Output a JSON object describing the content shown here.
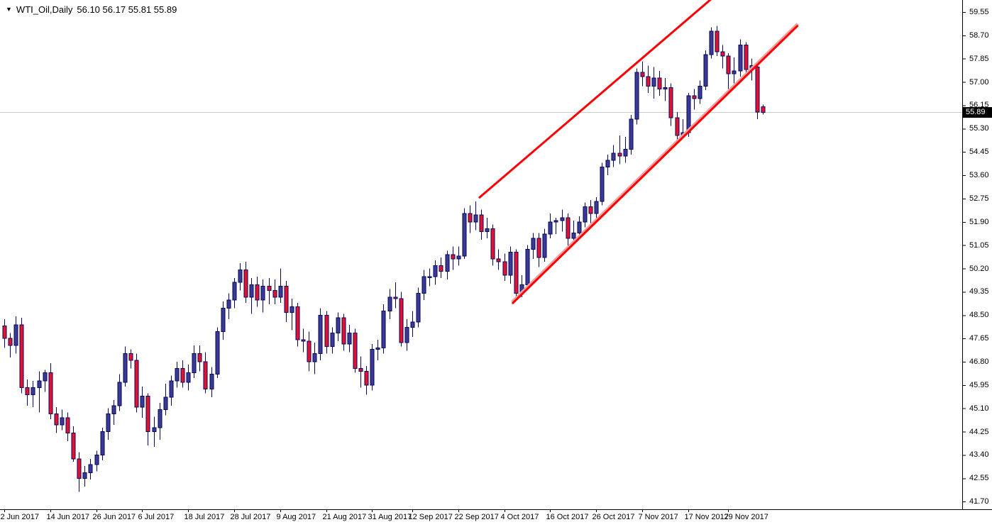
{
  "header": {
    "dropdown_icon": "▼",
    "symbol_label": "WTI_Oil,Daily",
    "ohlc_values": "56.10 56.17 55.81 55.89"
  },
  "chart_data": {
    "type": "candlestick",
    "title": "WTI_Oil,Daily",
    "symbol": "WTI_Oil",
    "timeframe": "Daily",
    "current_bar": {
      "open": 56.1,
      "high": 56.17,
      "low": 55.81,
      "close": 55.89
    },
    "current_price": "55.89",
    "current_price_line": 55.89,
    "xlim": [
      -0.74,
      166.7
    ],
    "ylim": [
      41.42,
      59.99
    ],
    "grid": "horizontal-line-at-current-price-only",
    "y_axis_labels": [
      "59.55",
      "58.70",
      "57.85",
      "57.00",
      "56.15",
      "55.30",
      "54.45",
      "53.60",
      "52.75",
      "51.90",
      "51.05",
      "50.20",
      "49.35",
      "48.50",
      "47.65",
      "46.80",
      "45.95",
      "45.10",
      "44.25",
      "43.40",
      "42.55",
      "41.70"
    ],
    "x_axis_labels": [
      {
        "text": "2 Jun 2017",
        "index": 0
      },
      {
        "text": "14 Jun 2017",
        "index": 8
      },
      {
        "text": "26 Jun 2017",
        "index": 16
      },
      {
        "text": "6 Jul 2017",
        "index": 24
      },
      {
        "text": "18 Jul 2017",
        "index": 32
      },
      {
        "text": "28 Jul 2017",
        "index": 40
      },
      {
        "text": "9 Aug 2017",
        "index": 48
      },
      {
        "text": "21 Aug 2017",
        "index": 56
      },
      {
        "text": "31 Aug 2017",
        "index": 64
      },
      {
        "text": "12 Sep 2017",
        "index": 71
      },
      {
        "text": "22 Sep 2017",
        "index": 79
      },
      {
        "text": "4 Oct 2017",
        "index": 87
      },
      {
        "text": "16 Oct 2017",
        "index": 95
      },
      {
        "text": "26 Oct 2017",
        "index": 103
      },
      {
        "text": "7 Nov 2017",
        "index": 111
      },
      {
        "text": "17 Nov 2017",
        "index": 119
      },
      {
        "text": "29 Nov 2017",
        "index": 126
      }
    ],
    "candles": [
      [
        48.1,
        48.35,
        47.3,
        47.65
      ],
      [
        47.65,
        47.85,
        46.95,
        47.4
      ],
      [
        47.4,
        48.45,
        47.1,
        48.15
      ],
      [
        48.15,
        48.4,
        45.65,
        45.85
      ],
      [
        45.85,
        46.15,
        45.2,
        45.6
      ],
      [
        45.6,
        46.1,
        45.15,
        45.85
      ],
      [
        45.85,
        46.45,
        44.95,
        46.1
      ],
      [
        46.1,
        46.5,
        45.7,
        46.4
      ],
      [
        46.4,
        46.75,
        44.7,
        44.9
      ],
      [
        44.9,
        45.15,
        44.2,
        44.5
      ],
      [
        44.5,
        45.05,
        44.3,
        44.75
      ],
      [
        44.75,
        44.95,
        43.9,
        44.2
      ],
      [
        44.2,
        44.45,
        43.15,
        43.25
      ],
      [
        43.25,
        43.5,
        42.05,
        42.55
      ],
      [
        42.55,
        43.0,
        42.25,
        42.75
      ],
      [
        42.75,
        43.25,
        42.5,
        43.05
      ],
      [
        43.05,
        43.55,
        42.8,
        43.4
      ],
      [
        43.4,
        44.4,
        43.2,
        44.25
      ],
      [
        44.25,
        45.1,
        43.95,
        44.9
      ],
      [
        44.9,
        45.4,
        44.5,
        45.2
      ],
      [
        45.2,
        46.35,
        45.0,
        46.05
      ],
      [
        46.05,
        47.35,
        45.9,
        47.1
      ],
      [
        47.1,
        47.25,
        46.55,
        46.85
      ],
      [
        46.85,
        47.1,
        44.95,
        45.15
      ],
      [
        45.15,
        45.9,
        44.75,
        45.55
      ],
      [
        45.55,
        45.65,
        43.75,
        44.25
      ],
      [
        44.25,
        44.8,
        43.7,
        44.4
      ],
      [
        44.4,
        45.3,
        43.95,
        45.05
      ],
      [
        45.05,
        46.0,
        44.85,
        45.5
      ],
      [
        45.5,
        46.3,
        45.2,
        46.1
      ],
      [
        46.1,
        46.8,
        45.85,
        46.55
      ],
      [
        46.55,
        46.85,
        45.85,
        46.05
      ],
      [
        46.05,
        46.7,
        45.75,
        46.4
      ],
      [
        46.4,
        47.4,
        46.2,
        47.1
      ],
      [
        47.1,
        47.4,
        46.45,
        46.8
      ],
      [
        46.8,
        47.15,
        45.65,
        45.8
      ],
      [
        45.8,
        46.6,
        45.5,
        46.35
      ],
      [
        46.35,
        48.05,
        46.2,
        47.9
      ],
      [
        47.9,
        49.0,
        47.6,
        48.75
      ],
      [
        48.75,
        49.3,
        48.35,
        49.05
      ],
      [
        49.05,
        49.85,
        48.75,
        49.7
      ],
      [
        49.7,
        50.4,
        49.4,
        50.15
      ],
      [
        50.15,
        50.45,
        48.95,
        49.15
      ],
      [
        49.15,
        49.85,
        48.55,
        49.6
      ],
      [
        49.6,
        49.9,
        48.8,
        49.05
      ],
      [
        49.05,
        49.8,
        48.6,
        49.55
      ],
      [
        49.55,
        49.85,
        48.9,
        49.4
      ],
      [
        49.4,
        49.8,
        48.9,
        49.15
      ],
      [
        49.15,
        50.2,
        48.95,
        49.55
      ],
      [
        49.55,
        49.75,
        48.25,
        48.6
      ],
      [
        48.6,
        49.1,
        47.95,
        48.8
      ],
      [
        48.8,
        48.95,
        47.35,
        47.6
      ],
      [
        47.6,
        48.0,
        47.15,
        47.55
      ],
      [
        47.55,
        47.9,
        46.45,
        46.8
      ],
      [
        46.8,
        47.5,
        46.35,
        47.1
      ],
      [
        47.1,
        48.75,
        46.85,
        48.5
      ],
      [
        48.5,
        48.65,
        47.1,
        47.35
      ],
      [
        47.35,
        48.05,
        47.1,
        47.85
      ],
      [
        47.85,
        48.6,
        47.55,
        48.4
      ],
      [
        48.4,
        48.55,
        47.2,
        47.45
      ],
      [
        47.45,
        48.15,
        47.15,
        47.85
      ],
      [
        47.85,
        48.0,
        46.4,
        46.55
      ],
      [
        46.55,
        47.0,
        45.85,
        46.45
      ],
      [
        46.45,
        46.65,
        45.6,
        45.95
      ],
      [
        45.95,
        47.45,
        45.75,
        47.25
      ],
      [
        47.25,
        47.6,
        46.85,
        47.3
      ],
      [
        47.3,
        48.9,
        47.1,
        48.65
      ],
      [
        48.65,
        49.45,
        48.35,
        49.15
      ],
      [
        49.15,
        49.7,
        48.75,
        49.1
      ],
      [
        49.1,
        49.35,
        47.35,
        47.5
      ],
      [
        47.5,
        48.35,
        47.2,
        48.05
      ],
      [
        48.05,
        48.65,
        47.7,
        48.25
      ],
      [
        48.25,
        49.5,
        48.05,
        49.3
      ],
      [
        49.3,
        50.15,
        49.05,
        49.9
      ],
      [
        49.9,
        50.2,
        49.55,
        49.9
      ],
      [
        49.9,
        50.5,
        49.6,
        50.3
      ],
      [
        50.3,
        50.6,
        49.85,
        50.1
      ],
      [
        50.1,
        50.85,
        49.8,
        50.7
      ],
      [
        50.7,
        51.0,
        50.15,
        50.55
      ],
      [
        50.55,
        51.0,
        50.3,
        50.65
      ],
      [
        50.65,
        52.4,
        50.55,
        52.2
      ],
      [
        52.2,
        52.5,
        51.5,
        51.9
      ],
      [
        51.9,
        52.65,
        51.6,
        52.15
      ],
      [
        52.15,
        52.35,
        51.25,
        51.55
      ],
      [
        51.55,
        52.05,
        51.3,
        51.65
      ],
      [
        51.65,
        51.8,
        50.3,
        50.55
      ],
      [
        50.55,
        50.9,
        50.15,
        50.45
      ],
      [
        50.45,
        50.75,
        49.75,
        49.95
      ],
      [
        49.95,
        51.0,
        49.65,
        50.8
      ],
      [
        50.8,
        50.9,
        49.15,
        49.3
      ],
      [
        49.3,
        49.95,
        49.15,
        49.6
      ],
      [
        49.6,
        51.05,
        49.45,
        50.9
      ],
      [
        50.9,
        51.5,
        50.55,
        51.3
      ],
      [
        51.3,
        51.5,
        50.25,
        50.6
      ],
      [
        50.6,
        51.65,
        50.45,
        51.45
      ],
      [
        51.45,
        52.2,
        51.3,
        51.9
      ],
      [
        51.9,
        52.05,
        51.45,
        51.95
      ],
      [
        51.95,
        52.35,
        51.55,
        52.05
      ],
      [
        52.05,
        52.2,
        51.0,
        51.3
      ],
      [
        51.3,
        51.95,
        51.1,
        51.5
      ],
      [
        51.5,
        52.1,
        51.3,
        51.9
      ],
      [
        51.9,
        52.6,
        51.7,
        52.45
      ],
      [
        52.45,
        52.7,
        51.85,
        52.2
      ],
      [
        52.2,
        52.8,
        51.95,
        52.65
      ],
      [
        52.65,
        54.05,
        52.5,
        53.9
      ],
      [
        53.9,
        54.35,
        53.6,
        54.15
      ],
      [
        54.15,
        54.7,
        53.9,
        54.4
      ],
      [
        54.4,
        55.05,
        54.0,
        54.3
      ],
      [
        54.3,
        55.0,
        54.05,
        54.55
      ],
      [
        54.55,
        55.8,
        54.35,
        55.65
      ],
      [
        55.65,
        57.5,
        55.45,
        57.35
      ],
      [
        57.35,
        57.75,
        56.85,
        57.2
      ],
      [
        57.2,
        57.6,
        56.6,
        56.85
      ],
      [
        56.85,
        57.55,
        56.4,
        57.15
      ],
      [
        57.15,
        57.4,
        56.5,
        56.75
      ],
      [
        56.75,
        57.15,
        56.3,
        56.8
      ],
      [
        56.8,
        56.95,
        55.4,
        55.7
      ],
      [
        55.7,
        55.9,
        54.85,
        55.05
      ],
      [
        55.05,
        55.65,
        54.95,
        55.15
      ],
      [
        55.15,
        56.6,
        55.0,
        56.5
      ],
      [
        56.5,
        56.75,
        56.0,
        56.4
      ],
      [
        56.4,
        57.05,
        56.2,
        56.85
      ],
      [
        56.85,
        58.15,
        56.7,
        58.0
      ],
      [
        58.0,
        59.0,
        57.85,
        58.85
      ],
      [
        58.85,
        59.05,
        57.95,
        58.1
      ],
      [
        58.1,
        58.35,
        57.5,
        57.95
      ],
      [
        57.95,
        58.05,
        56.75,
        57.3
      ],
      [
        57.3,
        57.9,
        56.95,
        57.4
      ],
      [
        57.4,
        58.55,
        57.2,
        58.35
      ],
      [
        58.35,
        58.45,
        57.25,
        57.45
      ],
      [
        57.45,
        57.85,
        57.05,
        57.6
      ],
      [
        57.55,
        57.6,
        55.65,
        55.9
      ],
      [
        56.1,
        56.17,
        55.81,
        55.89
      ]
    ],
    "trendlines": [
      {
        "name": "channel-upper",
        "from_index": 82.6,
        "from_price": 52.77,
        "to_index": 124.0,
        "to_price": 60.2,
        "halo": false
      },
      {
        "name": "channel-lower",
        "from_index": 88.4,
        "from_price": 48.92,
        "to_index": 138.1,
        "to_price": 59.06,
        "halo": true
      }
    ],
    "legend_position": "none",
    "colors": {
      "background": "#ffffff",
      "bull_fill": "#3B3B92",
      "bear_fill": "#E5112D",
      "outline_wick": "#050563",
      "trendline": "#FF0000",
      "trendline_halo": "#F2A1A1",
      "grid_line": "#CBCBCB",
      "axis_line": "#000000",
      "axis_text": "#000000",
      "price_tag_bg": "#000000",
      "price_tag_text": "#ffffff"
    }
  }
}
